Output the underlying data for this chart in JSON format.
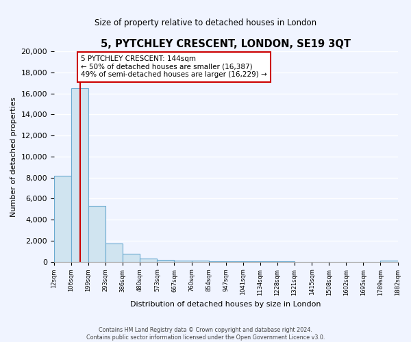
{
  "title": "5, PYTCHLEY CRESCENT, LONDON, SE19 3QT",
  "subtitle": "Size of property relative to detached houses in London",
  "xlabel": "Distribution of detached houses by size in London",
  "ylabel": "Number of detached properties",
  "bar_values": [
    8200,
    16500,
    5300,
    1750,
    750,
    300,
    200,
    150,
    100,
    50,
    50,
    50,
    30,
    30,
    20,
    20,
    15,
    15,
    10,
    150
  ],
  "bar_labels": [
    "12sqm",
    "106sqm",
    "199sqm",
    "293sqm",
    "386sqm",
    "480sqm",
    "573sqm",
    "667sqm",
    "760sqm",
    "854sqm",
    "947sqm",
    "1041sqm",
    "1134sqm",
    "1228sqm",
    "1321sqm",
    "1415sqm",
    "1508sqm",
    "1602sqm",
    "1695sqm",
    "1789sqm",
    "1882sqm"
  ],
  "bar_color": "#d0e4f0",
  "bar_edge_color": "#6aaad0",
  "vline_color": "#cc0000",
  "vline_position": 1.5,
  "annotation_title": "5 PYTCHLEY CRESCENT: 144sqm",
  "annotation_line1": "← 50% of detached houses are smaller (16,387)",
  "annotation_line2": "49% of semi-detached houses are larger (16,229) →",
  "annotation_box_color": "#ffffff",
  "annotation_box_edge": "#cc0000",
  "ylim": [
    0,
    20000
  ],
  "yticks": [
    0,
    2000,
    4000,
    6000,
    8000,
    10000,
    12000,
    14000,
    16000,
    18000,
    20000
  ],
  "footer_line1": "Contains HM Land Registry data © Crown copyright and database right 2024.",
  "footer_line2": "Contains public sector information licensed under the Open Government Licence v3.0.",
  "bg_color": "#f0f4ff"
}
